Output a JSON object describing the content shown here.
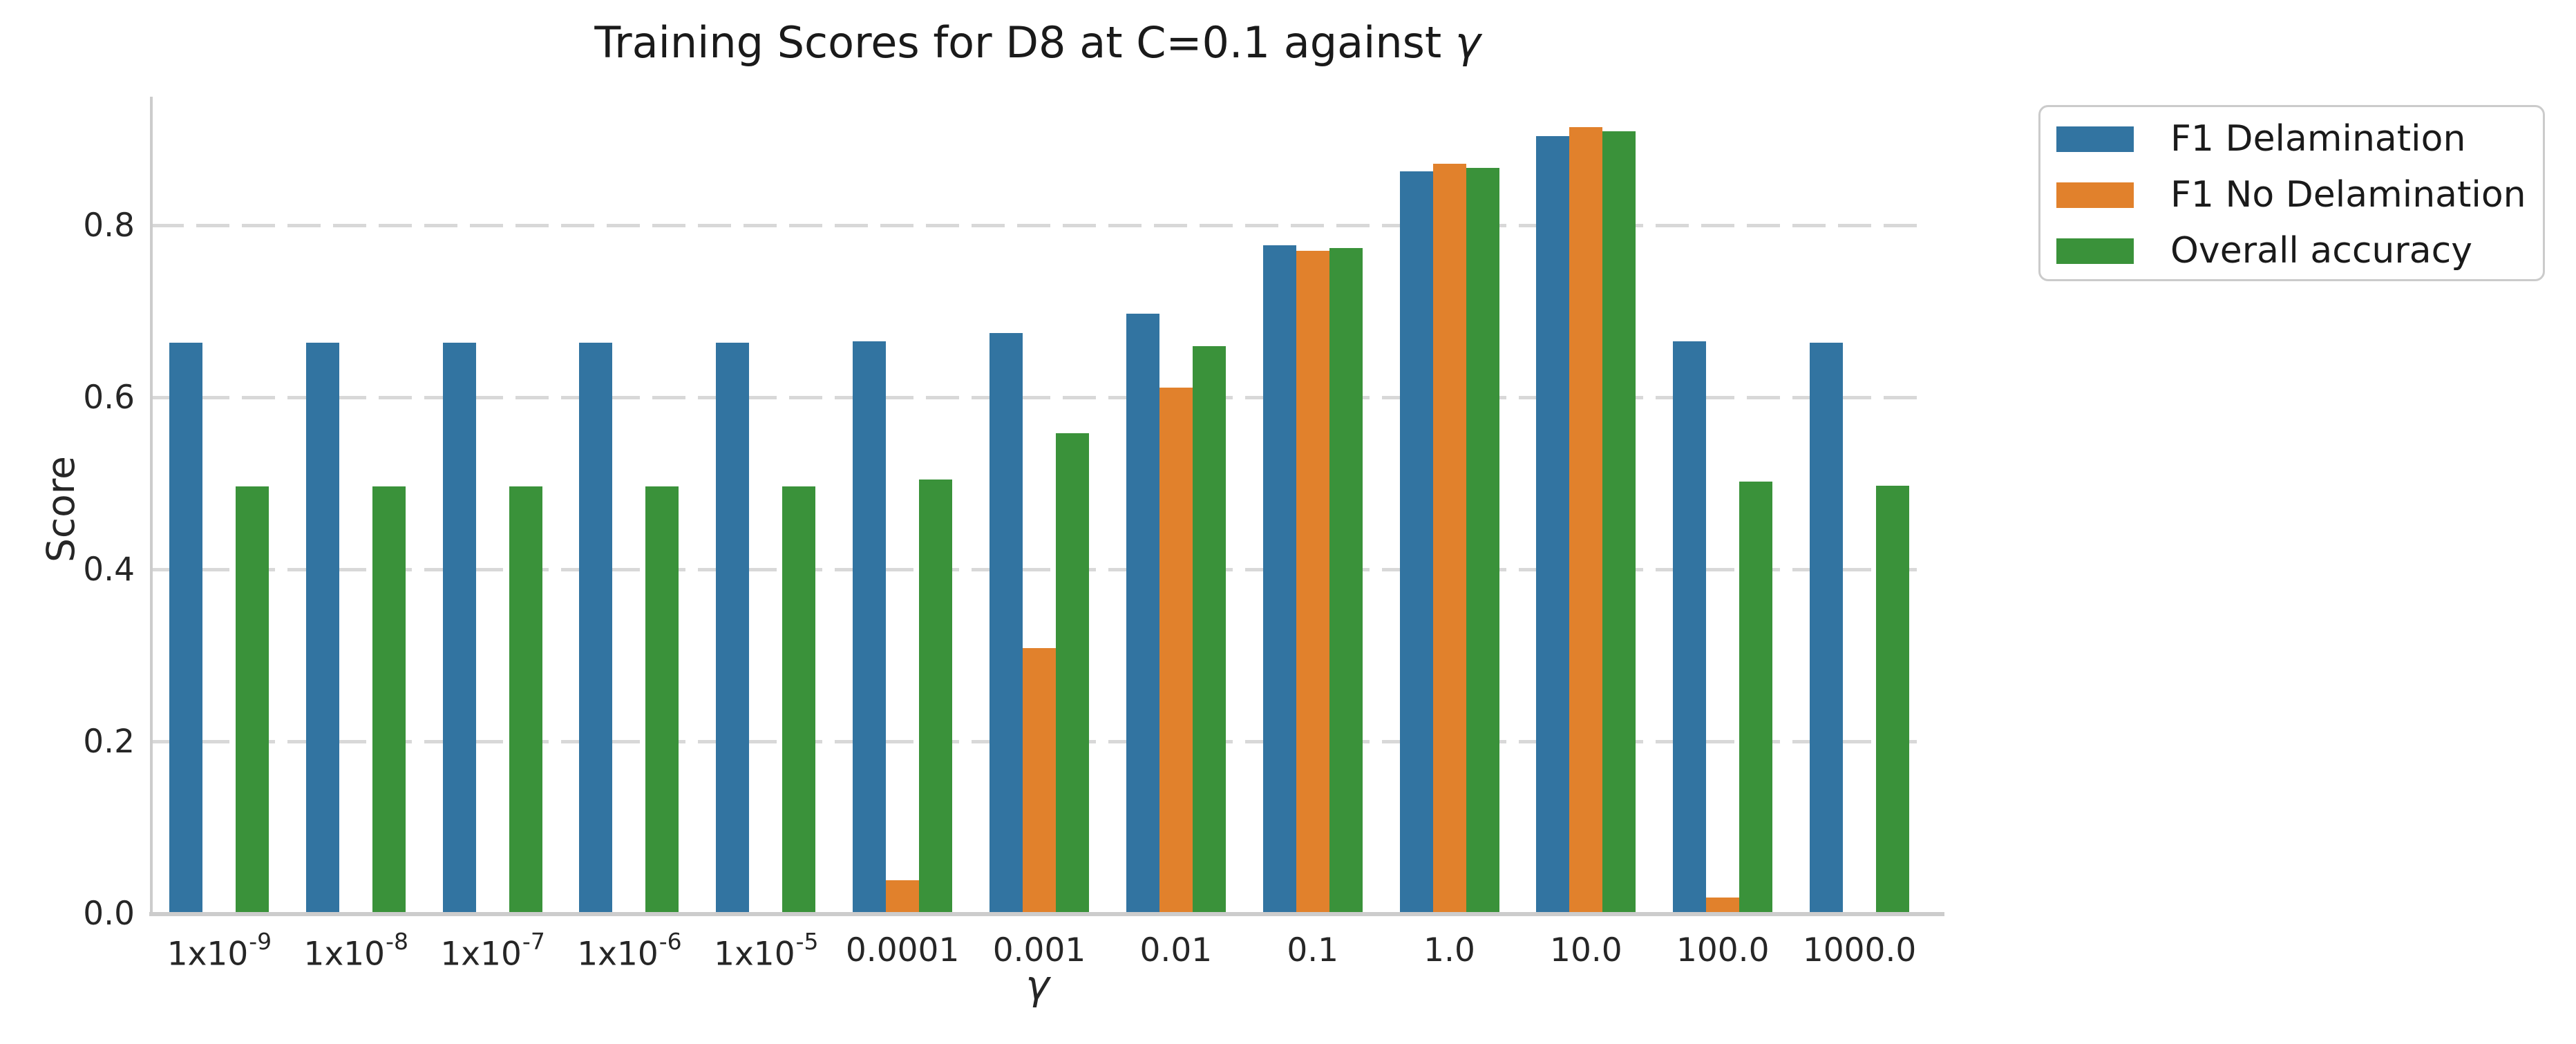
{
  "figure": {
    "title_main": "Training Scores for D8 at C=0.1 against ",
    "title_symbol": "γ",
    "background": "#ffffff",
    "text_color": "#262626",
    "grid_color": "#d8d8d8",
    "spine_color": "#cccccc"
  },
  "chart_data": {
    "type": "bar",
    "title": "Training Scores for D8 at C=0.1 against γ",
    "xlabel": "γ",
    "ylabel": "Score",
    "categories": [
      "1x10^-9",
      "1x10^-8",
      "1x10^-7",
      "1x10^-6",
      "1x10^-5",
      "0.0001",
      "0.001",
      "0.01",
      "0.1",
      "1.0",
      "10.0",
      "100.0",
      "1000.0"
    ],
    "series": [
      {
        "name": "F1 Delamination",
        "color": "#3274a1",
        "values": [
          0.664,
          0.664,
          0.664,
          0.664,
          0.664,
          0.666,
          0.675,
          0.698,
          0.777,
          0.863,
          0.904,
          0.666,
          0.664
        ]
      },
      {
        "name": "F1 No Delamination",
        "color": "#e1812c",
        "values": [
          0,
          0,
          0,
          0,
          0,
          0.039,
          0.309,
          0.612,
          0.771,
          0.872,
          0.915,
          0.019,
          0
        ]
      },
      {
        "name": "Overall accuracy",
        "color": "#3a923a",
        "values": [
          0.497,
          0.497,
          0.497,
          0.497,
          0.497,
          0.505,
          0.559,
          0.66,
          0.774,
          0.867,
          0.91,
          0.503,
          0.498
        ]
      }
    ],
    "ylim": [
      0,
      0.95
    ],
    "yticks": [
      "0.0",
      "0.2",
      "0.4",
      "0.6",
      "0.8"
    ],
    "grid": true,
    "legend": {
      "position": "upper-right-outside",
      "labels": [
        "F1 Delamination",
        "F1 No Delamination",
        "Overall accuracy"
      ]
    }
  }
}
